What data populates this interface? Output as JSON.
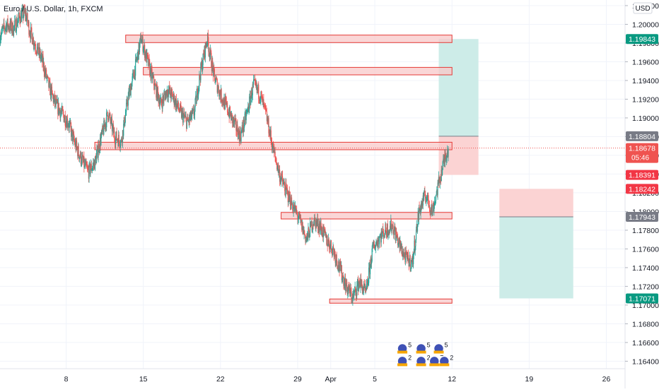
{
  "header": {
    "symbol_title": "Euro / U.S. Dollar, 1h, FXCM",
    "currency": "USD"
  },
  "colors": {
    "up": "#26a69a",
    "down": "#ef5350",
    "zone_fill": "#f8c8c8",
    "zone_stroke": "#e53935",
    "tp_fill": "#cdece8",
    "sl_fill": "#fbd3d3",
    "grid": "#f0f3fa",
    "axis_text": "#131722",
    "neutral_label": "#787b86",
    "last_price": "#ef5350",
    "green_label": "#089981",
    "red_label": "#f23645"
  },
  "chart_data": {
    "type": "candlestick",
    "title": "Euro / U.S. Dollar, 1h, FXCM",
    "x_ticks": [
      {
        "label": "8",
        "day": 8
      },
      {
        "label": "15",
        "day": 15
      },
      {
        "label": "22",
        "day": 22
      },
      {
        "label": "29",
        "day": 29
      },
      {
        "label": "Apr",
        "day": 32
      },
      {
        "label": "5",
        "day": 36
      },
      {
        "label": "12",
        "day": 43
      },
      {
        "label": "19",
        "day": 50
      },
      {
        "label": "26",
        "day": 57
      }
    ],
    "x_range_days": [
      2.0,
      58.7
    ],
    "ylim": [
      1.1632,
      1.2026
    ],
    "y_ticks": [
      "1.20200",
      "1.20000",
      "1.19800",
      "1.19600",
      "1.19400",
      "1.19200",
      "1.19000",
      "1.18800",
      "1.18600",
      "1.18400",
      "1.18200",
      "1.18000",
      "1.17800",
      "1.17600",
      "1.17400",
      "1.17200",
      "1.17000",
      "1.16800",
      "1.16600",
      "1.16400"
    ],
    "y_tick_values": [
      1.202,
      1.2,
      1.198,
      1.196,
      1.194,
      1.192,
      1.19,
      1.188,
      1.186,
      1.184,
      1.182,
      1.18,
      1.178,
      1.176,
      1.174,
      1.172,
      1.17,
      1.168,
      1.166,
      1.164
    ],
    "price_path": [
      [
        2.0,
        1.1988
      ],
      [
        2.6,
        1.2
      ],
      [
        3.2,
        1.1995
      ],
      [
        3.8,
        1.2008
      ],
      [
        4.3,
        1.2012
      ],
      [
        4.7,
        1.1993
      ],
      [
        5.2,
        1.1978
      ],
      [
        5.8,
        1.1962
      ],
      [
        6.4,
        1.1935
      ],
      [
        7.0,
        1.1915
      ],
      [
        7.6,
        1.1905
      ],
      [
        8.2,
        1.1895
      ],
      [
        8.8,
        1.1872
      ],
      [
        9.4,
        1.1855
      ],
      [
        10.0,
        1.1842
      ],
      [
        10.6,
        1.1852
      ],
      [
        11.2,
        1.188
      ],
      [
        11.8,
        1.1905
      ],
      [
        12.4,
        1.188
      ],
      [
        13.0,
        1.1875
      ],
      [
        13.6,
        1.192
      ],
      [
        14.2,
        1.195
      ],
      [
        14.8,
        1.1985
      ],
      [
        15.4,
        1.196
      ],
      [
        16.0,
        1.1935
      ],
      [
        16.6,
        1.1915
      ],
      [
        17.2,
        1.193
      ],
      [
        17.8,
        1.192
      ],
      [
        18.4,
        1.1905
      ],
      [
        19.0,
        1.1895
      ],
      [
        19.6,
        1.1905
      ],
      [
        20.2,
        1.195
      ],
      [
        20.8,
        1.1985
      ],
      [
        21.4,
        1.1945
      ],
      [
        22.0,
        1.1925
      ],
      [
        22.6,
        1.191
      ],
      [
        23.2,
        1.1895
      ],
      [
        23.8,
        1.188
      ],
      [
        24.4,
        1.1905
      ],
      [
        25.0,
        1.1935
      ],
      [
        25.6,
        1.1925
      ],
      [
        26.2,
        1.19
      ],
      [
        26.8,
        1.1865
      ],
      [
        27.4,
        1.1838
      ],
      [
        28.0,
        1.182
      ],
      [
        28.6,
        1.1805
      ],
      [
        29.2,
        1.179
      ],
      [
        29.8,
        1.177
      ],
      [
        30.4,
        1.179
      ],
      [
        31.0,
        1.1785
      ],
      [
        31.6,
        1.177
      ],
      [
        32.2,
        1.176
      ],
      [
        32.8,
        1.174
      ],
      [
        33.4,
        1.172
      ],
      [
        34.0,
        1.1708
      ],
      [
        34.6,
        1.1725
      ],
      [
        35.2,
        1.1712
      ],
      [
        35.8,
        1.176
      ],
      [
        36.4,
        1.1772
      ],
      [
        37.0,
        1.178
      ],
      [
        37.6,
        1.1785
      ],
      [
        38.2,
        1.1765
      ],
      [
        38.8,
        1.175
      ],
      [
        39.4,
        1.1745
      ],
      [
        40.0,
        1.18
      ],
      [
        40.6,
        1.1818
      ],
      [
        41.2,
        1.18
      ],
      [
        41.8,
        1.183
      ],
      [
        42.4,
        1.186
      ],
      [
        42.7,
        1.1868
      ]
    ],
    "zones": [
      {
        "from_day": 13.4,
        "to_day": 43.0,
        "top": 1.19885,
        "bottom": 1.19805
      },
      {
        "from_day": 15.0,
        "to_day": 43.0,
        "top": 1.1954,
        "bottom": 1.1946
      },
      {
        "from_day": 10.6,
        "to_day": 43.0,
        "top": 1.1874,
        "bottom": 1.1866
      },
      {
        "from_day": 27.5,
        "to_day": 43.0,
        "top": 1.1799,
        "bottom": 1.1792
      },
      {
        "from_day": 31.9,
        "to_day": 43.0,
        "top": 1.17065,
        "bottom": 1.1702
      }
    ],
    "positions": [
      {
        "kind": "long",
        "from_day": 41.8,
        "to_day": 45.4,
        "target": 1.19843,
        "entry": 1.18804,
        "stop": 1.18391
      },
      {
        "kind": "short",
        "from_day": 47.3,
        "to_day": 54.0,
        "stop": 1.18242,
        "entry": 1.17943,
        "target": 1.17071
      }
    ],
    "price_labels": [
      {
        "text": "1.19843",
        "value": 1.19843,
        "style": "green"
      },
      {
        "text": "1.18804",
        "value": 1.18804,
        "style": "neutral"
      },
      {
        "text": "1.18678",
        "value": 1.18678,
        "style": "last",
        "sub": "05:46"
      },
      {
        "text": "1.18391",
        "value": 1.18391,
        "style": "red"
      },
      {
        "text": "1.18242",
        "value": 1.18242,
        "style": "red"
      },
      {
        "text": "1.17943",
        "value": 1.17943,
        "style": "neutral"
      },
      {
        "text": "1.17071",
        "value": 1.17071,
        "style": "green"
      }
    ],
    "last_price": 1.18678,
    "events": [
      {
        "day": 38.5,
        "value": 1.16535,
        "count": "5"
      },
      {
        "day": 40.2,
        "value": 1.16535,
        "count": "5"
      },
      {
        "day": 41.8,
        "value": 1.16535,
        "count": "5"
      },
      {
        "day": 38.5,
        "value": 1.164,
        "count": "2"
      },
      {
        "day": 40.2,
        "value": 1.164,
        "count": "2"
      },
      {
        "day": 41.4,
        "value": 1.164,
        "count": "7"
      },
      {
        "day": 42.3,
        "value": 1.164,
        "count": "2"
      }
    ]
  }
}
